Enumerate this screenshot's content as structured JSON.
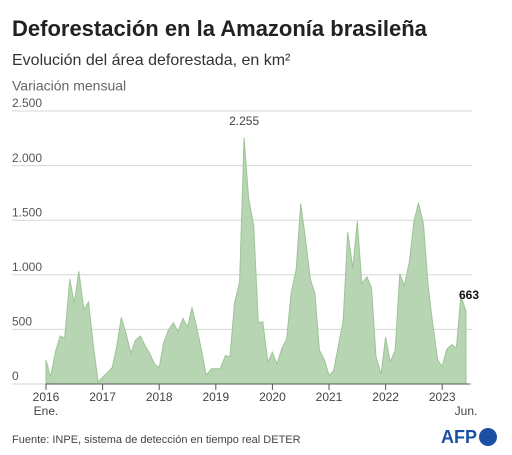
{
  "chart_data": {
    "type": "area",
    "title": "Deforestación en la Amazonía brasileña",
    "subtitle": "Evolución del área deforestada, en km²",
    "y_label": "Variación mensual",
    "source": "Fuente: INPE, sistema de detección en tiempo real DETER",
    "logo": "AFP",
    "color": "#b7d5b2",
    "line_color": "#9dc497",
    "grid": true,
    "x": [
      2016.0,
      2016.08,
      2016.17,
      2016.25,
      2016.33,
      2016.42,
      2016.5,
      2016.58,
      2016.67,
      2016.75,
      2016.83,
      2016.92,
      2017.0,
      2017.08,
      2017.17,
      2017.25,
      2017.33,
      2017.42,
      2017.5,
      2017.58,
      2017.67,
      2017.75,
      2017.83,
      2017.92,
      2018.0,
      2018.08,
      2018.17,
      2018.25,
      2018.33,
      2018.42,
      2018.5,
      2018.58,
      2018.67,
      2018.75,
      2018.83,
      2018.92,
      2019.0,
      2019.08,
      2019.17,
      2019.25,
      2019.33,
      2019.42,
      2019.5,
      2019.58,
      2019.67,
      2019.75,
      2019.83,
      2019.92,
      2020.0,
      2020.08,
      2020.17,
      2020.25,
      2020.33,
      2020.42,
      2020.5,
      2020.58,
      2020.67,
      2020.75,
      2020.83,
      2020.92,
      2021.0,
      2021.08,
      2021.17,
      2021.25,
      2021.33,
      2021.42,
      2021.5,
      2021.58,
      2021.67,
      2021.75,
      2021.83,
      2021.92,
      2022.0,
      2022.08,
      2022.17,
      2022.25,
      2022.33,
      2022.42,
      2022.5,
      2022.58,
      2022.67,
      2022.75,
      2022.83,
      2022.92,
      2023.0,
      2023.08,
      2023.17,
      2023.25,
      2023.33,
      2023.42
    ],
    "values": [
      220,
      60,
      300,
      440,
      420,
      960,
      740,
      1030,
      680,
      750,
      380,
      20,
      60,
      100,
      150,
      350,
      610,
      450,
      280,
      400,
      440,
      350,
      280,
      180,
      150,
      380,
      500,
      560,
      480,
      600,
      520,
      700,
      500,
      300,
      80,
      140,
      140,
      140,
      260,
      250,
      740,
      930,
      2255,
      1700,
      1450,
      560,
      570,
      200,
      290,
      180,
      330,
      410,
      830,
      1050,
      1650,
      1350,
      960,
      830,
      310,
      220,
      80,
      120,
      360,
      580,
      1390,
      1060,
      1490,
      920,
      980,
      880,
      250,
      90,
      430,
      200,
      310,
      1010,
      900,
      1120,
      1490,
      1660,
      1460,
      900,
      560,
      220,
      160,
      320,
      360,
      330,
      810,
      663
    ],
    "value_labels": [
      null,
      null,
      null,
      null,
      null,
      null,
      null,
      null,
      null,
      null,
      null,
      null,
      null,
      null,
      null,
      null,
      null,
      null,
      null,
      null,
      null,
      null,
      null,
      null,
      null,
      null,
      null,
      null,
      null,
      null,
      null,
      null,
      null,
      null,
      null,
      null,
      null,
      null,
      null,
      null,
      null,
      null,
      "2.255",
      null,
      null,
      null,
      null,
      null,
      null,
      null,
      null,
      null,
      null,
      null,
      null,
      null,
      null,
      null,
      null,
      null,
      null,
      null,
      null,
      null,
      null,
      null,
      null,
      null,
      null,
      null,
      null,
      null,
      null,
      null,
      null,
      null,
      null,
      null,
      null,
      null,
      null,
      null,
      null,
      null,
      null,
      null,
      null,
      null,
      null,
      "663"
    ],
    "xlim": [
      2016,
      2023.42
    ],
    "xticks": [
      2016,
      2017,
      2018,
      2019,
      2020,
      2021,
      2022,
      2023
    ],
    "x_sublabels": [
      {
        "value": 2016,
        "label": "Ene."
      },
      {
        "value": 2023.42,
        "label": "Jun."
      }
    ],
    "ylim": [
      0,
      2500
    ],
    "yticks": [
      0,
      500,
      {
        "value": 1000,
        "label": "1.000"
      },
      {
        "value": 1500,
        "label": "1.500"
      },
      {
        "value": 2000,
        "label": "2.000"
      },
      {
        "value": 2500,
        "label": "2.500"
      }
    ]
  }
}
